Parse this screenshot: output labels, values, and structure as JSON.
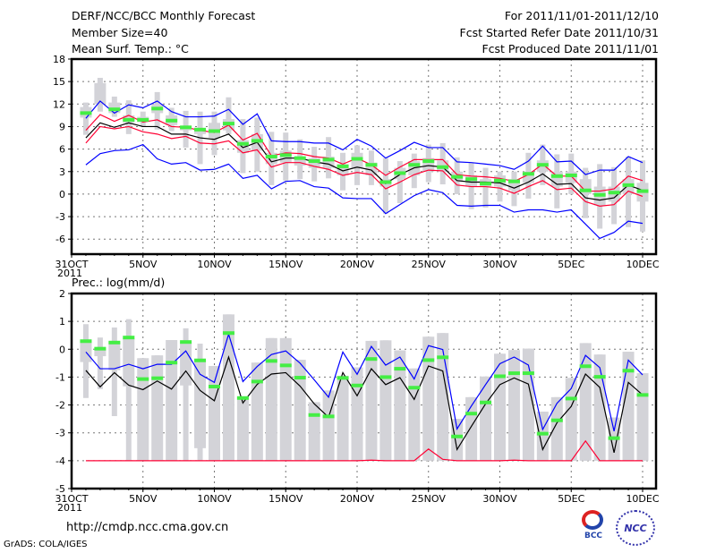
{
  "header": {
    "title": "DERF/NCC/BCC Monthly Forecast",
    "member_size": "Member Size=40",
    "var_label": "Mean Surf. Temp.: °C",
    "period": "For 2011/11/01-2011/12/10",
    "start_date": "Fcst Started Refer Date 2011/10/31",
    "produced_date": "Fcst Produced Date 2011/11/01"
  },
  "footer": {
    "url": "http://cmdp.ncc.cma.gov.cn",
    "grads": "GrADS: COLA/IGES",
    "logo_bcc": "BCC",
    "logo_ncc": "NCC"
  },
  "colors": {
    "mean": "#000000",
    "spread": "#ff0033",
    "extreme": "#0000ff",
    "obs": "#44ee44",
    "box": "#d3d3d8"
  },
  "chart_data": [
    {
      "type": "line",
      "title": "Mean Surf. Temp.: °C",
      "ylabel": "°C",
      "ylim": [
        -8,
        18
      ],
      "yticks": [
        18,
        15,
        12,
        9,
        6,
        3,
        0,
        -3,
        -6
      ],
      "xlim": [
        0,
        41
      ],
      "xticks": [
        {
          "day": 0,
          "label": "31OCT",
          "sub": "2011"
        },
        {
          "day": 5,
          "label": "5NOV"
        },
        {
          "day": 10,
          "label": "10NOV"
        },
        {
          "day": 15,
          "label": "15NOV"
        },
        {
          "day": 20,
          "label": "20NOV"
        },
        {
          "day": 25,
          "label": "25NOV"
        },
        {
          "day": 30,
          "label": "30NOV"
        },
        {
          "day": 35,
          "label": "5DEC"
        },
        {
          "day": 40,
          "label": "10DEC"
        }
      ],
      "grid": true,
      "series": {
        "mean": [
          7.5,
          9.5,
          8.9,
          9.5,
          9.0,
          9.0,
          8.0,
          8.0,
          7.5,
          7.3,
          8.0,
          6.2,
          6.9,
          4.3,
          4.8,
          4.8,
          4.3,
          4.0,
          3.1,
          3.6,
          3.2,
          1.4,
          2.6,
          3.5,
          3.8,
          3.6,
          1.8,
          1.6,
          1.6,
          1.5,
          0.8,
          1.6,
          2.7,
          1.3,
          1.4,
          -0.5,
          -0.8,
          -0.5,
          1.2,
          0.5
        ],
        "upper": [
          8.5,
          10.6,
          9.7,
          10.5,
          9.6,
          9.9,
          9.0,
          8.9,
          8.5,
          8.2,
          9.2,
          7.2,
          8.1,
          5.1,
          5.5,
          5.4,
          5.0,
          4.8,
          4.0,
          4.8,
          3.9,
          2.5,
          3.6,
          4.6,
          4.6,
          4.6,
          2.6,
          2.4,
          2.3,
          2.1,
          1.7,
          2.6,
          4.0,
          2.4,
          2.4,
          0.4,
          0.4,
          0.7,
          2.4,
          1.8
        ],
        "lower": [
          6.8,
          9.0,
          8.7,
          9.0,
          8.3,
          8.0,
          7.4,
          7.7,
          6.8,
          6.7,
          7.1,
          5.5,
          5.9,
          3.6,
          4.2,
          4.2,
          3.7,
          3.3,
          2.5,
          2.9,
          2.6,
          0.7,
          1.6,
          2.6,
          3.2,
          3.1,
          1.2,
          1.0,
          1.0,
          0.8,
          0.1,
          1.0,
          1.8,
          0.6,
          0.8,
          -1.0,
          -1.6,
          -1.4,
          0.4,
          -0.3
        ],
        "max": [
          10.1,
          12.4,
          10.8,
          11.9,
          11.5,
          12.4,
          11.0,
          10.3,
          10.3,
          10.4,
          11.3,
          9.3,
          10.7,
          7.1,
          7.0,
          7.0,
          6.8,
          6.8,
          5.9,
          7.3,
          6.4,
          4.8,
          5.8,
          6.9,
          6.2,
          6.2,
          4.3,
          4.2,
          4.0,
          3.8,
          3.3,
          4.4,
          6.4,
          4.3,
          4.4,
          2.6,
          3.2,
          3.2,
          5.0,
          4.2
        ],
        "min": [
          3.9,
          5.4,
          5.8,
          5.9,
          6.6,
          4.7,
          4.0,
          4.2,
          3.2,
          3.3,
          4.0,
          2.1,
          2.5,
          0.7,
          1.7,
          1.8,
          1.0,
          0.8,
          -0.5,
          -0.6,
          -0.6,
          -2.6,
          -1.4,
          -0.2,
          0.6,
          0.2,
          -1.5,
          -1.6,
          -1.5,
          -1.5,
          -2.4,
          -2.1,
          -2.1,
          -2.4,
          -2.1,
          -4.0,
          -5.9,
          -5.1,
          -3.6,
          -3.9
        ],
        "obs": [
          10.8,
          null,
          11.3,
          9.9,
          9.9,
          11.4,
          9.8,
          8.9,
          8.6,
          8.4,
          9.4,
          6.7,
          7.1,
          5.0,
          5.2,
          4.8,
          4.4,
          4.6,
          3.7,
          4.7,
          3.9,
          1.6,
          2.8,
          3.9,
          4.4,
          3.6,
          2.3,
          2.0,
          1.4,
          1.8,
          1.7,
          2.7,
          3.9,
          2.4,
          2.5,
          0.5,
          -0.1,
          0.2,
          1.2,
          0.4
        ],
        "whisker": [
          [
            7.9,
            12.2
          ],
          [
            11.0,
            15.5
          ],
          [
            10.3,
            13.0
          ],
          [
            8.0,
            12.5
          ],
          [
            9.0,
            11.0
          ],
          [
            8.6,
            13.6
          ],
          [
            8.4,
            11.5
          ],
          [
            6.2,
            11.1
          ],
          [
            4.0,
            11.0
          ],
          [
            5.2,
            11.0
          ],
          [
            8.0,
            12.9
          ],
          [
            2.8,
            10.0
          ],
          [
            3.0,
            10.2
          ],
          [
            1.2,
            8.3
          ],
          [
            1.8,
            8.2
          ],
          [
            2.0,
            7.3
          ],
          [
            1.7,
            6.3
          ],
          [
            2.1,
            7.6
          ],
          [
            0.5,
            5.5
          ],
          [
            1.2,
            6.5
          ],
          [
            1.2,
            5.8
          ],
          [
            -2.6,
            4.8
          ],
          [
            -1.2,
            4.4
          ],
          [
            0.8,
            5.4
          ],
          [
            1.6,
            6.6
          ],
          [
            1.3,
            6.8
          ],
          [
            0.0,
            4.9
          ],
          [
            -2.0,
            4.2
          ],
          [
            -1.8,
            3.5
          ],
          [
            -1.0,
            3.0
          ],
          [
            -1.6,
            3.0
          ],
          [
            -0.6,
            5.5
          ],
          [
            1.2,
            6.6
          ],
          [
            -1.9,
            5.3
          ],
          [
            0.0,
            5.4
          ],
          [
            -3.2,
            3.5
          ],
          [
            -4.6,
            4.0
          ],
          [
            -4.0,
            3.6
          ],
          [
            -4.4,
            5.0
          ],
          [
            -5.0,
            4.5
          ]
        ],
        "box": [
          [
            10.2,
            11.6
          ],
          [
            12.0,
            14.8
          ],
          [
            10.8,
            12.2
          ],
          [
            9.5,
            10.5
          ],
          [
            9.6,
            10.3
          ],
          [
            10.8,
            12.0
          ],
          [
            9.2,
            10.5
          ],
          [
            8.5,
            9.0
          ],
          [
            8.0,
            8.7
          ],
          [
            7.5,
            9.5
          ],
          [
            8.5,
            10.0
          ],
          [
            5.5,
            7.2
          ],
          [
            5.8,
            8.0
          ],
          [
            4.0,
            5.5
          ],
          [
            4.2,
            5.8
          ],
          [
            3.8,
            5.0
          ],
          [
            3.5,
            4.8
          ],
          [
            3.5,
            5.0
          ],
          [
            2.5,
            4.0
          ],
          [
            3.5,
            5.5
          ],
          [
            2.5,
            4.2
          ],
          [
            1.0,
            2.0
          ],
          [
            2.0,
            3.5
          ],
          [
            2.5,
            4.4
          ],
          [
            3.0,
            4.8
          ],
          [
            3.0,
            4.5
          ],
          [
            1.8,
            3.0
          ],
          [
            1.0,
            2.5
          ],
          [
            1.0,
            2.0
          ],
          [
            1.0,
            2.5
          ],
          [
            0.5,
            2.0
          ],
          [
            1.5,
            3.0
          ],
          [
            3.0,
            4.5
          ],
          [
            1.0,
            3.0
          ],
          [
            1.5,
            3.0
          ],
          [
            0.0,
            2.0
          ],
          [
            -1.5,
            1.0
          ],
          [
            -1.0,
            1.0
          ],
          [
            0.0,
            2.0
          ],
          [
            -1.0,
            1.5
          ]
        ]
      }
    },
    {
      "type": "line",
      "title": "Prec.: log(mm/d)",
      "ylabel": "log(mm/d)",
      "ylim": [
        -5,
        2
      ],
      "yticks": [
        2,
        1,
        0,
        -1,
        -2,
        -3,
        -4,
        -5
      ],
      "xlim": [
        0,
        41
      ],
      "xticks": [
        {
          "day": 0,
          "label": "31OCT",
          "sub": "2011"
        },
        {
          "day": 5,
          "label": "5NOV"
        },
        {
          "day": 10,
          "label": "10NOV"
        },
        {
          "day": 15,
          "label": "15NOV"
        },
        {
          "day": 20,
          "label": "20NOV"
        },
        {
          "day": 25,
          "label": "25NOV"
        },
        {
          "day": 30,
          "label": "30NOV"
        },
        {
          "day": 35,
          "label": "5DEC"
        },
        {
          "day": 40,
          "label": "10DEC"
        }
      ],
      "grid": true,
      "series": {
        "mean": [
          -0.76,
          -1.35,
          -0.84,
          -1.29,
          -1.45,
          -1.14,
          -1.43,
          -0.78,
          -1.48,
          -1.85,
          -0.28,
          -1.93,
          -1.26,
          -0.89,
          -0.84,
          -1.32,
          -1.96,
          -2.44,
          -0.84,
          -1.67,
          -0.7,
          -1.27,
          -1.02,
          -1.8,
          -0.6,
          -0.78,
          -3.6,
          -2.77,
          -1.96,
          -1.27,
          -1.03,
          -1.25,
          -3.6,
          -2.64,
          -2.05,
          -0.89,
          -1.37,
          -3.71,
          -1.19,
          -1.64
        ],
        "max": [
          -0.1,
          -0.7,
          -0.7,
          -0.54,
          -0.7,
          -0.54,
          -0.54,
          -0.06,
          -0.9,
          -1.19,
          0.54,
          -1.16,
          -0.62,
          -0.19,
          -0.06,
          -0.5,
          -1.1,
          -1.72,
          -0.1,
          -0.9,
          0.1,
          -0.57,
          -0.28,
          -1.07,
          0.13,
          -0.01,
          -2.86,
          -2.04,
          -1.27,
          -0.52,
          -0.28,
          -0.57,
          -2.88,
          -1.94,
          -1.41,
          -0.22,
          -0.66,
          -2.94,
          -0.39,
          -0.92
        ],
        "min": [
          -4,
          -4,
          -4,
          -4,
          -4,
          -4,
          -4,
          -4,
          -4,
          -4,
          -4,
          -4,
          -4,
          -4,
          -4,
          -4,
          -4,
          -4,
          -4,
          -4,
          -3.98,
          -4,
          -4,
          -4,
          -3.58,
          -3.95,
          -4,
          -4,
          -4,
          -4,
          -3.98,
          -4,
          -4,
          -4,
          -4,
          -3.29,
          -4,
          -4,
          -4,
          -4
        ],
        "obs": [
          0.29,
          0.02,
          0.24,
          0.42,
          -1.07,
          -1.04,
          -0.48,
          0.26,
          -0.4,
          -1.34,
          0.58,
          -1.75,
          -1.16,
          -0.42,
          -0.58,
          -1.02,
          -2.36,
          -2.41,
          -1.03,
          -1.3,
          -0.35,
          -1.0,
          -0.7,
          -1.38,
          -0.39,
          -0.29,
          -3.13,
          -2.31,
          -1.91,
          -0.97,
          -0.86,
          -0.86,
          -3.03,
          -2.55,
          -1.77,
          -0.61,
          -0.99,
          -3.19,
          -0.77,
          -1.64
        ],
        "whisker": [
          [
            -1.75,
            0.9
          ],
          [
            -1.43,
            0.42
          ],
          [
            -2.4,
            0.78
          ],
          [
            -4,
            1.08
          ],
          [
            -4,
            -0.32
          ],
          [
            -4,
            -0.22
          ],
          [
            -4,
            0.33
          ],
          [
            -4,
            0.75
          ],
          [
            -4,
            0.2
          ],
          [
            -4,
            -0.6
          ],
          [
            -4,
            1.25
          ],
          [
            -4,
            -1.7
          ],
          [
            -4,
            -0.48
          ],
          [
            -4,
            0.4
          ],
          [
            -4,
            0.4
          ],
          [
            -4,
            -0.38
          ],
          [
            -4,
            -1.9
          ],
          [
            -4,
            -1.48
          ],
          [
            -4,
            -0.95
          ],
          [
            -4,
            -0.65
          ],
          [
            -4,
            0.3
          ],
          [
            -4,
            0.32
          ],
          [
            -4,
            -0.04
          ],
          [
            -4,
            -0.69
          ],
          [
            -4,
            0.45
          ],
          [
            -4,
            0.58
          ],
          [
            -4,
            -2.5
          ],
          [
            -4,
            -1.72
          ],
          [
            -4,
            -0.98
          ],
          [
            -4,
            -0.16
          ],
          [
            -4,
            -0.03
          ],
          [
            -4,
            0.02
          ],
          [
            -4,
            -2.24
          ],
          [
            -4,
            -1.72
          ],
          [
            -4,
            -1.03
          ],
          [
            -4,
            0.22
          ],
          [
            -4,
            -0.19
          ],
          [
            -4,
            -2.45
          ],
          [
            -4,
            -0.09
          ],
          [
            -4,
            -0.86
          ]
        ],
        "box": [
          [
            -0.46,
            0.3
          ],
          [
            -0.25,
            0.0
          ],
          [
            -0.75,
            0.25
          ],
          [
            -1.33,
            0.4
          ],
          [
            -4,
            -0.32
          ],
          [
            -4,
            -0.22
          ],
          [
            -4,
            0.33
          ],
          [
            -1.3,
            0.25
          ],
          [
            -3.55,
            -0.4
          ],
          [
            -4,
            -0.6
          ],
          [
            -4,
            1.25
          ],
          [
            -4,
            -1.7
          ],
          [
            -4,
            -0.48
          ],
          [
            -4,
            0.4
          ],
          [
            -4,
            0.4
          ],
          [
            -4,
            -0.38
          ],
          [
            -4,
            -1.9
          ],
          [
            -4,
            -1.48
          ],
          [
            -4,
            -0.95
          ],
          [
            -4,
            -0.65
          ],
          [
            -4,
            0.3
          ],
          [
            -4,
            0.32
          ],
          [
            -4,
            -0.04
          ],
          [
            -4,
            -0.69
          ],
          [
            -4,
            0.45
          ],
          [
            -4,
            0.58
          ],
          [
            -4,
            -2.5
          ],
          [
            -4,
            -1.72
          ],
          [
            -4,
            -0.98
          ],
          [
            -4,
            -0.16
          ],
          [
            -4,
            -0.03
          ],
          [
            -4,
            0.02
          ],
          [
            -4,
            -2.24
          ],
          [
            -4,
            -1.72
          ],
          [
            -4,
            -1.03
          ],
          [
            -4,
            0.22
          ],
          [
            -4,
            -0.19
          ],
          [
            -4,
            -2.45
          ],
          [
            -4,
            -0.09
          ],
          [
            -4,
            -0.86
          ]
        ]
      }
    }
  ]
}
